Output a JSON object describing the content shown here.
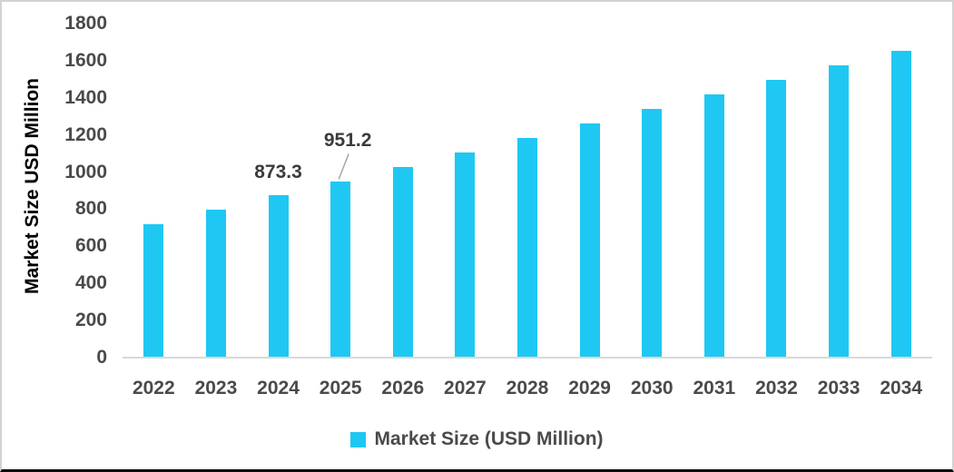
{
  "chart_data": {
    "type": "bar",
    "title": "",
    "categories": [
      "2022",
      "2023",
      "2024",
      "2025",
      "2026",
      "2027",
      "2028",
      "2029",
      "2030",
      "2031",
      "2032",
      "2033",
      "2034"
    ],
    "series": [
      {
        "name": "Market Size (USD Million)",
        "values": [
          717.5,
          795.4,
          873.3,
          951.2,
          1029.1,
          1107.0,
          1184.9,
          1262.8,
          1340.7,
          1418.6,
          1496.5,
          1574.4,
          1652.3
        ]
      }
    ],
    "xlabel": "",
    "ylabel": "Market Size USD Million",
    "ylim": [
      0,
      1800
    ],
    "y_ticks": [
      {
        "label": "0",
        "value": 0
      },
      {
        "label": "200",
        "value": 200
      },
      {
        "label": "400",
        "value": 400
      },
      {
        "label": "600",
        "value": 600
      },
      {
        "label": "800",
        "value": 800
      },
      {
        "label": "1000",
        "value": 1000
      },
      {
        "label": "1200",
        "value": 1200
      },
      {
        "label": "1400",
        "value": 1400
      },
      {
        "label": "1600",
        "value": 1600
      },
      {
        "label": "1800",
        "value": 1800
      }
    ],
    "grid": false,
    "legend_position": "bottom",
    "annotations": [
      {
        "category": "2024",
        "text": "873.3",
        "leader_line": false
      },
      {
        "category": "2025",
        "text": "951.2",
        "leader_line": true
      }
    ]
  },
  "legend": {
    "label": "Market Size (USD Million)"
  },
  "colors": {
    "bar": "#1FC8F2",
    "tick_text": "#4A4A4A",
    "data_label_text": "#3B3B3B",
    "axis_line": "#D9D9D9",
    "leader_line": "#A6A6A6",
    "frame_border": "#D2D2D2",
    "frame_border_bottom": "#0B0B0B"
  }
}
